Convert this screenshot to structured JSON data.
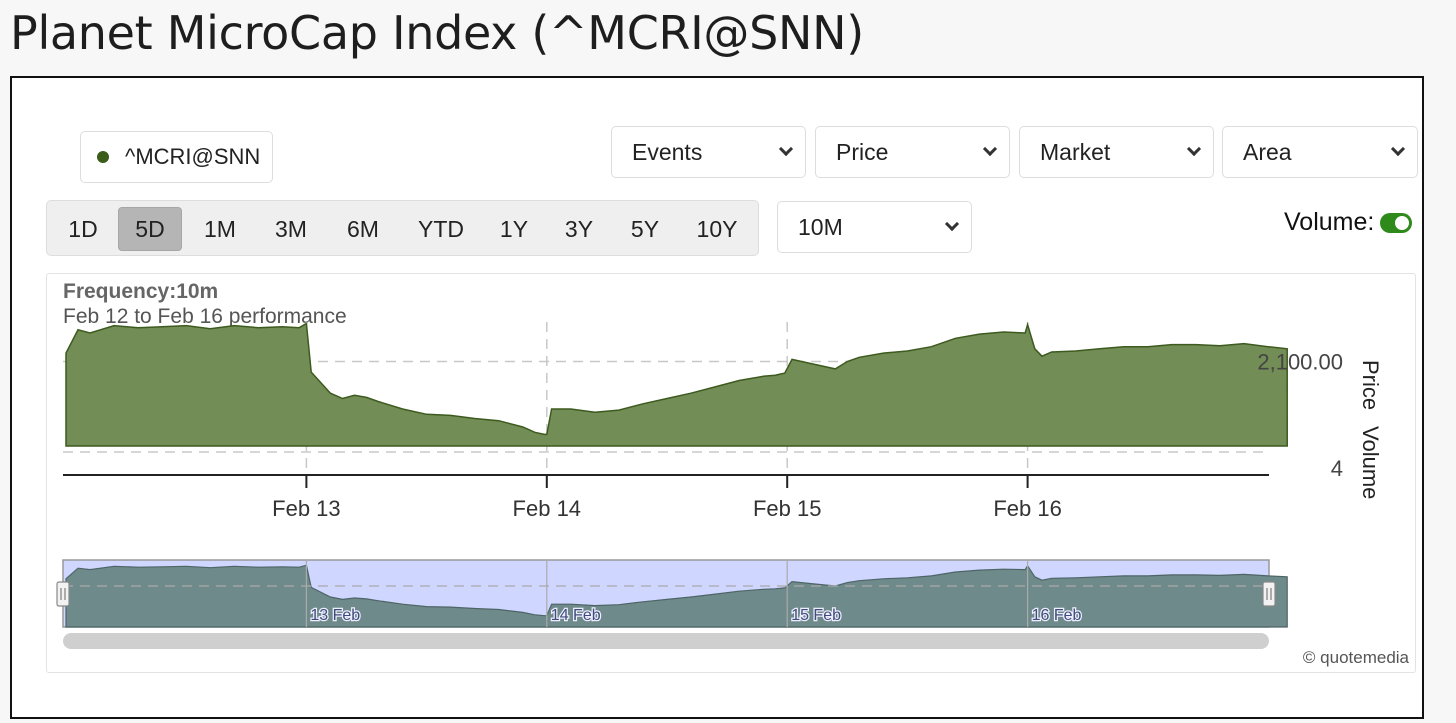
{
  "page": {
    "title": "Planet MicroCap Index (^MCRI@SNN)"
  },
  "legend": {
    "label": "^MCRI@SNN",
    "color": "#3c5d1a"
  },
  "controls": {
    "selects": [
      {
        "label": "Events"
      },
      {
        "label": "Price"
      },
      {
        "label": "Market"
      },
      {
        "label": "Area"
      }
    ],
    "ranges": [
      "1D",
      "5D",
      "1M",
      "3M",
      "6M",
      "YTD",
      "1Y",
      "3Y",
      "5Y",
      "10Y"
    ],
    "active_range": "5D",
    "interval": "10M",
    "volume_label": "Volume:",
    "volume_on": true
  },
  "chart": {
    "frequency": "Frequency:10m",
    "subtitle": "Feb 12 to Feb 16 performance",
    "price_axis_label": "Price",
    "volume_axis_label": "Volume",
    "credit": "© quotemedia"
  },
  "chart_data": {
    "type": "area",
    "colors": {
      "area": "#728d55",
      "stroke": "#3d5a1f",
      "navigator": "#6f8a8b",
      "navigator_bg": "#cfd6ff"
    },
    "x_ticks": [
      "Feb 13",
      "Feb 14",
      "Feb 15",
      "Feb 16"
    ],
    "navigator_ticks": [
      "13 Feb",
      "14 Feb",
      "15 Feb",
      "16 Feb"
    ],
    "y_tick_labels": [
      "2,100.00"
    ],
    "volume_tick_labels": [
      "4"
    ],
    "grid": true,
    "series": [
      {
        "x": [
          0,
          0.05,
          0.1,
          0.2,
          0.3,
          0.4,
          0.5,
          0.6,
          0.7,
          0.8,
          0.9,
          0.97,
          1.0,
          1.02,
          1.1,
          1.15,
          1.2,
          1.25,
          1.3,
          1.4,
          1.5,
          1.6,
          1.7,
          1.8,
          1.9,
          1.95,
          1.99,
          2.0,
          2.02,
          2.1,
          2.2,
          2.3,
          2.4,
          2.5,
          2.6,
          2.7,
          2.8,
          2.9,
          2.95,
          2.99,
          3.02,
          3.1,
          3.2,
          3.25,
          3.3,
          3.4,
          3.5,
          3.6,
          3.7,
          3.8,
          3.9,
          3.99,
          4.0,
          4.03,
          4.06,
          4.1,
          4.2,
          4.3,
          4.4,
          4.5,
          4.6,
          4.7,
          4.8,
          4.9,
          5.0,
          5.08
        ],
        "values": [
          2108,
          2130,
          2127,
          2134,
          2132,
          2133,
          2134,
          2131,
          2134,
          2132,
          2133,
          2132,
          2136,
          2090,
          2070,
          2065,
          2068,
          2066,
          2062,
          2055,
          2050,
          2049,
          2046,
          2044,
          2038,
          2033,
          2031,
          2031,
          2055,
          2055,
          2052,
          2054,
          2060,
          2065,
          2070,
          2076,
          2082,
          2086,
          2087,
          2089,
          2102,
          2098,
          2093,
          2100,
          2104,
          2108,
          2110,
          2114,
          2122,
          2126,
          2128,
          2127,
          2135,
          2112,
          2105,
          2109,
          2110,
          2112,
          2114,
          2114,
          2116,
          2116,
          2115,
          2117,
          2114,
          2112
        ]
      }
    ]
  }
}
